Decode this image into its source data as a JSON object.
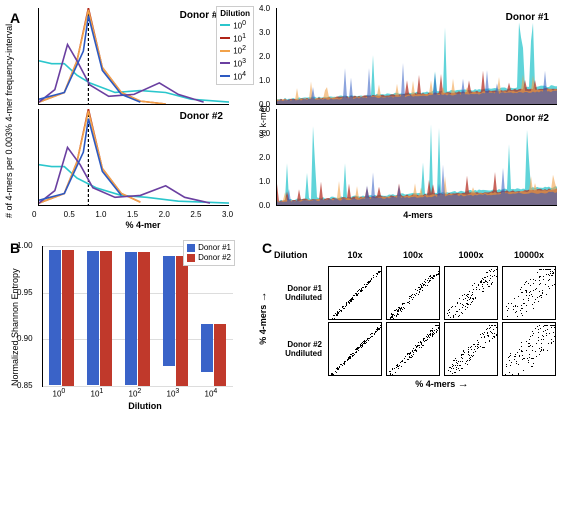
{
  "panels": {
    "A": {
      "label": "A",
      "left": {
        "ylabel": "# of 4-mers per 0.003% 4-mer frequency-interval",
        "xlabel": "% 4-mer",
        "xlim": [
          0,
          3.0
        ],
        "xticks": [
          0,
          0.5,
          1.0,
          1.5,
          2.0,
          2.5,
          3.0
        ],
        "subplots": [
          {
            "title": "Donor #1",
            "vline_x": 0.78,
            "series": [
              {
                "name": "10^0",
                "color": "#2bc6cc",
                "points": [
                  [
                    0.0,
                    0.45
                  ],
                  [
                    0.2,
                    0.42
                  ],
                  [
                    0.4,
                    0.42
                  ],
                  [
                    0.6,
                    0.3
                  ],
                  [
                    0.8,
                    0.22
                  ],
                  [
                    1.2,
                    0.12
                  ],
                  [
                    1.6,
                    0.14
                  ],
                  [
                    2.0,
                    0.12
                  ],
                  [
                    2.4,
                    0.05
                  ],
                  [
                    3.0,
                    0.02
                  ]
                ]
              },
              {
                "name": "10^1",
                "color": "#b02418",
                "points": [
                  [
                    0.0,
                    0.02
                  ],
                  [
                    0.4,
                    0.12
                  ],
                  [
                    0.6,
                    0.45
                  ],
                  [
                    0.78,
                    1.0
                  ],
                  [
                    1.0,
                    0.38
                  ],
                  [
                    1.3,
                    0.12
                  ],
                  [
                    1.6,
                    0.03
                  ],
                  [
                    2.0,
                    0.0
                  ]
                ]
              },
              {
                "name": "10^2",
                "color": "#f2a24a",
                "points": [
                  [
                    0.0,
                    0.02
                  ],
                  [
                    0.4,
                    0.12
                  ],
                  [
                    0.6,
                    0.45
                  ],
                  [
                    0.78,
                    0.98
                  ],
                  [
                    1.0,
                    0.38
                  ],
                  [
                    1.3,
                    0.12
                  ],
                  [
                    1.6,
                    0.03
                  ],
                  [
                    2.0,
                    0.0
                  ]
                ]
              },
              {
                "name": "10^3",
                "color": "#6a3fa0",
                "points": [
                  [
                    0.0,
                    0.02
                  ],
                  [
                    0.25,
                    0.15
                  ],
                  [
                    0.45,
                    0.62
                  ],
                  [
                    0.6,
                    0.45
                  ],
                  [
                    0.8,
                    0.2
                  ],
                  [
                    1.1,
                    0.08
                  ],
                  [
                    1.5,
                    0.1
                  ],
                  [
                    1.9,
                    0.22
                  ],
                  [
                    2.2,
                    0.1
                  ],
                  [
                    2.6,
                    0.02
                  ]
                ]
              },
              {
                "name": "10^4",
                "color": "#2d59c1",
                "points": [
                  [
                    0.0,
                    0.05
                  ],
                  [
                    0.4,
                    0.12
                  ],
                  [
                    0.7,
                    0.55
                  ],
                  [
                    0.78,
                    0.92
                  ],
                  [
                    1.0,
                    0.35
                  ],
                  [
                    1.3,
                    0.1
                  ],
                  [
                    1.6,
                    0.02
                  ]
                ]
              }
            ]
          },
          {
            "title": "Donor #2",
            "vline_x": 0.78,
            "series": [
              {
                "name": "10^0",
                "color": "#2bc6cc",
                "points": [
                  [
                    0.0,
                    0.42
                  ],
                  [
                    0.2,
                    0.4
                  ],
                  [
                    0.4,
                    0.4
                  ],
                  [
                    0.6,
                    0.28
                  ],
                  [
                    0.9,
                    0.18
                  ],
                  [
                    1.3,
                    0.1
                  ],
                  [
                    1.7,
                    0.08
                  ],
                  [
                    2.2,
                    0.04
                  ],
                  [
                    3.0,
                    0.02
                  ]
                ]
              },
              {
                "name": "10^1",
                "color": "#b02418",
                "points": [
                  [
                    0.0,
                    0.02
                  ],
                  [
                    0.4,
                    0.12
                  ],
                  [
                    0.6,
                    0.45
                  ],
                  [
                    0.78,
                    1.0
                  ],
                  [
                    1.0,
                    0.38
                  ],
                  [
                    1.3,
                    0.12
                  ],
                  [
                    1.6,
                    0.03
                  ]
                ]
              },
              {
                "name": "10^2",
                "color": "#f2a24a",
                "points": [
                  [
                    0.0,
                    0.02
                  ],
                  [
                    0.4,
                    0.12
                  ],
                  [
                    0.6,
                    0.45
                  ],
                  [
                    0.78,
                    0.98
                  ],
                  [
                    1.0,
                    0.38
                  ],
                  [
                    1.3,
                    0.12
                  ],
                  [
                    1.6,
                    0.03
                  ]
                ]
              },
              {
                "name": "10^3",
                "color": "#6a3fa0",
                "points": [
                  [
                    0.0,
                    0.02
                  ],
                  [
                    0.25,
                    0.15
                  ],
                  [
                    0.45,
                    0.6
                  ],
                  [
                    0.65,
                    0.42
                  ],
                  [
                    0.85,
                    0.18
                  ],
                  [
                    1.2,
                    0.08
                  ],
                  [
                    1.6,
                    0.1
                  ],
                  [
                    2.0,
                    0.2
                  ],
                  [
                    2.3,
                    0.08
                  ],
                  [
                    2.7,
                    0.02
                  ]
                ]
              },
              {
                "name": "10^4",
                "color": "#2d59c1",
                "points": [
                  [
                    0.0,
                    0.05
                  ],
                  [
                    0.4,
                    0.12
                  ],
                  [
                    0.7,
                    0.55
                  ],
                  [
                    0.78,
                    0.9
                  ],
                  [
                    1.0,
                    0.35
                  ],
                  [
                    1.3,
                    0.1
                  ]
                ]
              }
            ]
          }
        ],
        "legend": {
          "title": "Dilution",
          "items": [
            {
              "label_base": "10",
              "label_exp": "0",
              "color": "#2bc6cc"
            },
            {
              "label_base": "10",
              "label_exp": "1",
              "color": "#b02418"
            },
            {
              "label_base": "10",
              "label_exp": "2",
              "color": "#f2a24a"
            },
            {
              "label_base": "10",
              "label_exp": "3",
              "color": "#6a3fa0"
            },
            {
              "label_base": "10",
              "label_exp": "4",
              "color": "#2d59c1"
            }
          ]
        }
      },
      "right": {
        "ylabel": "% k-mer",
        "xlabel": "4-mers",
        "ylim": [
          0,
          4.0
        ],
        "yticks": [
          0,
          1.0,
          2.0,
          3.0,
          4.0
        ],
        "subplots": [
          {
            "title": "Donor #1",
            "layers": [
              {
                "color": "#2bc6cc",
                "opacity": 0.75,
                "baseline": 0.4,
                "spikes": 2.8
              },
              {
                "color": "#b02418",
                "opacity": 0.7,
                "baseline": 0.35,
                "spikes": 0.9
              },
              {
                "color": "#f2a24a",
                "opacity": 0.6,
                "baseline": 0.32,
                "spikes": 0.8
              },
              {
                "color": "#2d59c1",
                "opacity": 0.55,
                "baseline": 0.28,
                "spikes": 1.4
              }
            ]
          },
          {
            "title": "Donor #2",
            "layers": [
              {
                "color": "#2bc6cc",
                "opacity": 0.75,
                "baseline": 0.4,
                "spikes": 3.2
              },
              {
                "color": "#b02418",
                "opacity": 0.7,
                "baseline": 0.35,
                "spikes": 0.9
              },
              {
                "color": "#f2a24a",
                "opacity": 0.6,
                "baseline": 0.32,
                "spikes": 0.8
              },
              {
                "color": "#2d59c1",
                "opacity": 0.55,
                "baseline": 0.28,
                "spikes": 1.4
              }
            ]
          }
        ]
      }
    },
    "B": {
      "label": "B",
      "ylabel": "Normalized Shannon Entropy",
      "xlabel": "Dilution",
      "ylim": [
        0.85,
        1.0
      ],
      "yticks": [
        0.85,
        0.9,
        0.95,
        1.0
      ],
      "xticks_base": "10",
      "xticks_exp": [
        "0",
        "1",
        "2",
        "3",
        "4"
      ],
      "series": [
        {
          "name": "Donor #1",
          "color": "#3a63c8",
          "values": [
            0.995,
            0.994,
            0.993,
            0.968,
            0.901
          ]
        },
        {
          "name": "Donor #2",
          "color": "#c0392b",
          "values": [
            0.996,
            0.995,
            0.994,
            0.989,
            0.916
          ]
        }
      ]
    },
    "C": {
      "label": "C",
      "corner_label": "Dilution",
      "xlabel": "% 4-mers",
      "ylabel": "% 4-mers",
      "cols": [
        "10x",
        "100x",
        "1000x",
        "10000x"
      ],
      "rows": [
        "Donor #1 Undiluted",
        "Donor #2 Undiluted"
      ],
      "spread": [
        0.04,
        0.08,
        0.18,
        0.35
      ]
    }
  }
}
